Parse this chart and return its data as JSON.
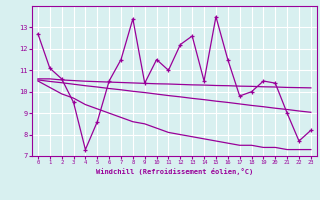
{
  "xlabel": "Windchill (Refroidissement éolien,°C)",
  "x": [
    0,
    1,
    2,
    3,
    4,
    5,
    6,
    7,
    8,
    9,
    10,
    11,
    12,
    13,
    14,
    15,
    16,
    17,
    18,
    19,
    20,
    21,
    22,
    23
  ],
  "y_main": [
    12.7,
    11.1,
    10.6,
    9.5,
    7.3,
    8.6,
    10.5,
    11.5,
    13.4,
    10.4,
    11.5,
    11.0,
    12.2,
    12.6,
    10.5,
    13.5,
    11.5,
    9.8,
    10.0,
    10.5,
    10.4,
    9.0,
    7.7,
    8.2
  ],
  "y_upper": [
    10.6,
    10.6,
    10.55,
    10.52,
    10.49,
    10.47,
    10.45,
    10.43,
    10.41,
    10.39,
    10.37,
    10.36,
    10.34,
    10.32,
    10.31,
    10.29,
    10.28,
    10.26,
    10.25,
    10.23,
    10.22,
    10.2,
    10.19,
    10.18
  ],
  "y_mid": [
    10.55,
    10.48,
    10.42,
    10.35,
    10.28,
    10.22,
    10.15,
    10.09,
    10.02,
    9.96,
    9.89,
    9.82,
    9.76,
    9.69,
    9.63,
    9.56,
    9.5,
    9.43,
    9.36,
    9.3,
    9.23,
    9.17,
    9.1,
    9.04
  ],
  "y_lower": [
    10.5,
    10.2,
    9.9,
    9.7,
    9.4,
    9.2,
    9.0,
    8.8,
    8.6,
    8.5,
    8.3,
    8.1,
    8.0,
    7.9,
    7.8,
    7.7,
    7.6,
    7.5,
    7.5,
    7.4,
    7.4,
    7.3,
    7.3,
    7.3
  ],
  "color": "#990099",
  "bg_color": "#d8f0f0",
  "grid_color": "#ffffff",
  "ylim": [
    7,
    14
  ],
  "xlim": [
    -0.5,
    23.5
  ],
  "yticks": [
    7,
    8,
    9,
    10,
    11,
    12,
    13
  ],
  "xticks": [
    0,
    1,
    2,
    3,
    4,
    5,
    6,
    7,
    8,
    9,
    10,
    11,
    12,
    13,
    14,
    15,
    16,
    17,
    18,
    19,
    20,
    21,
    22,
    23
  ]
}
